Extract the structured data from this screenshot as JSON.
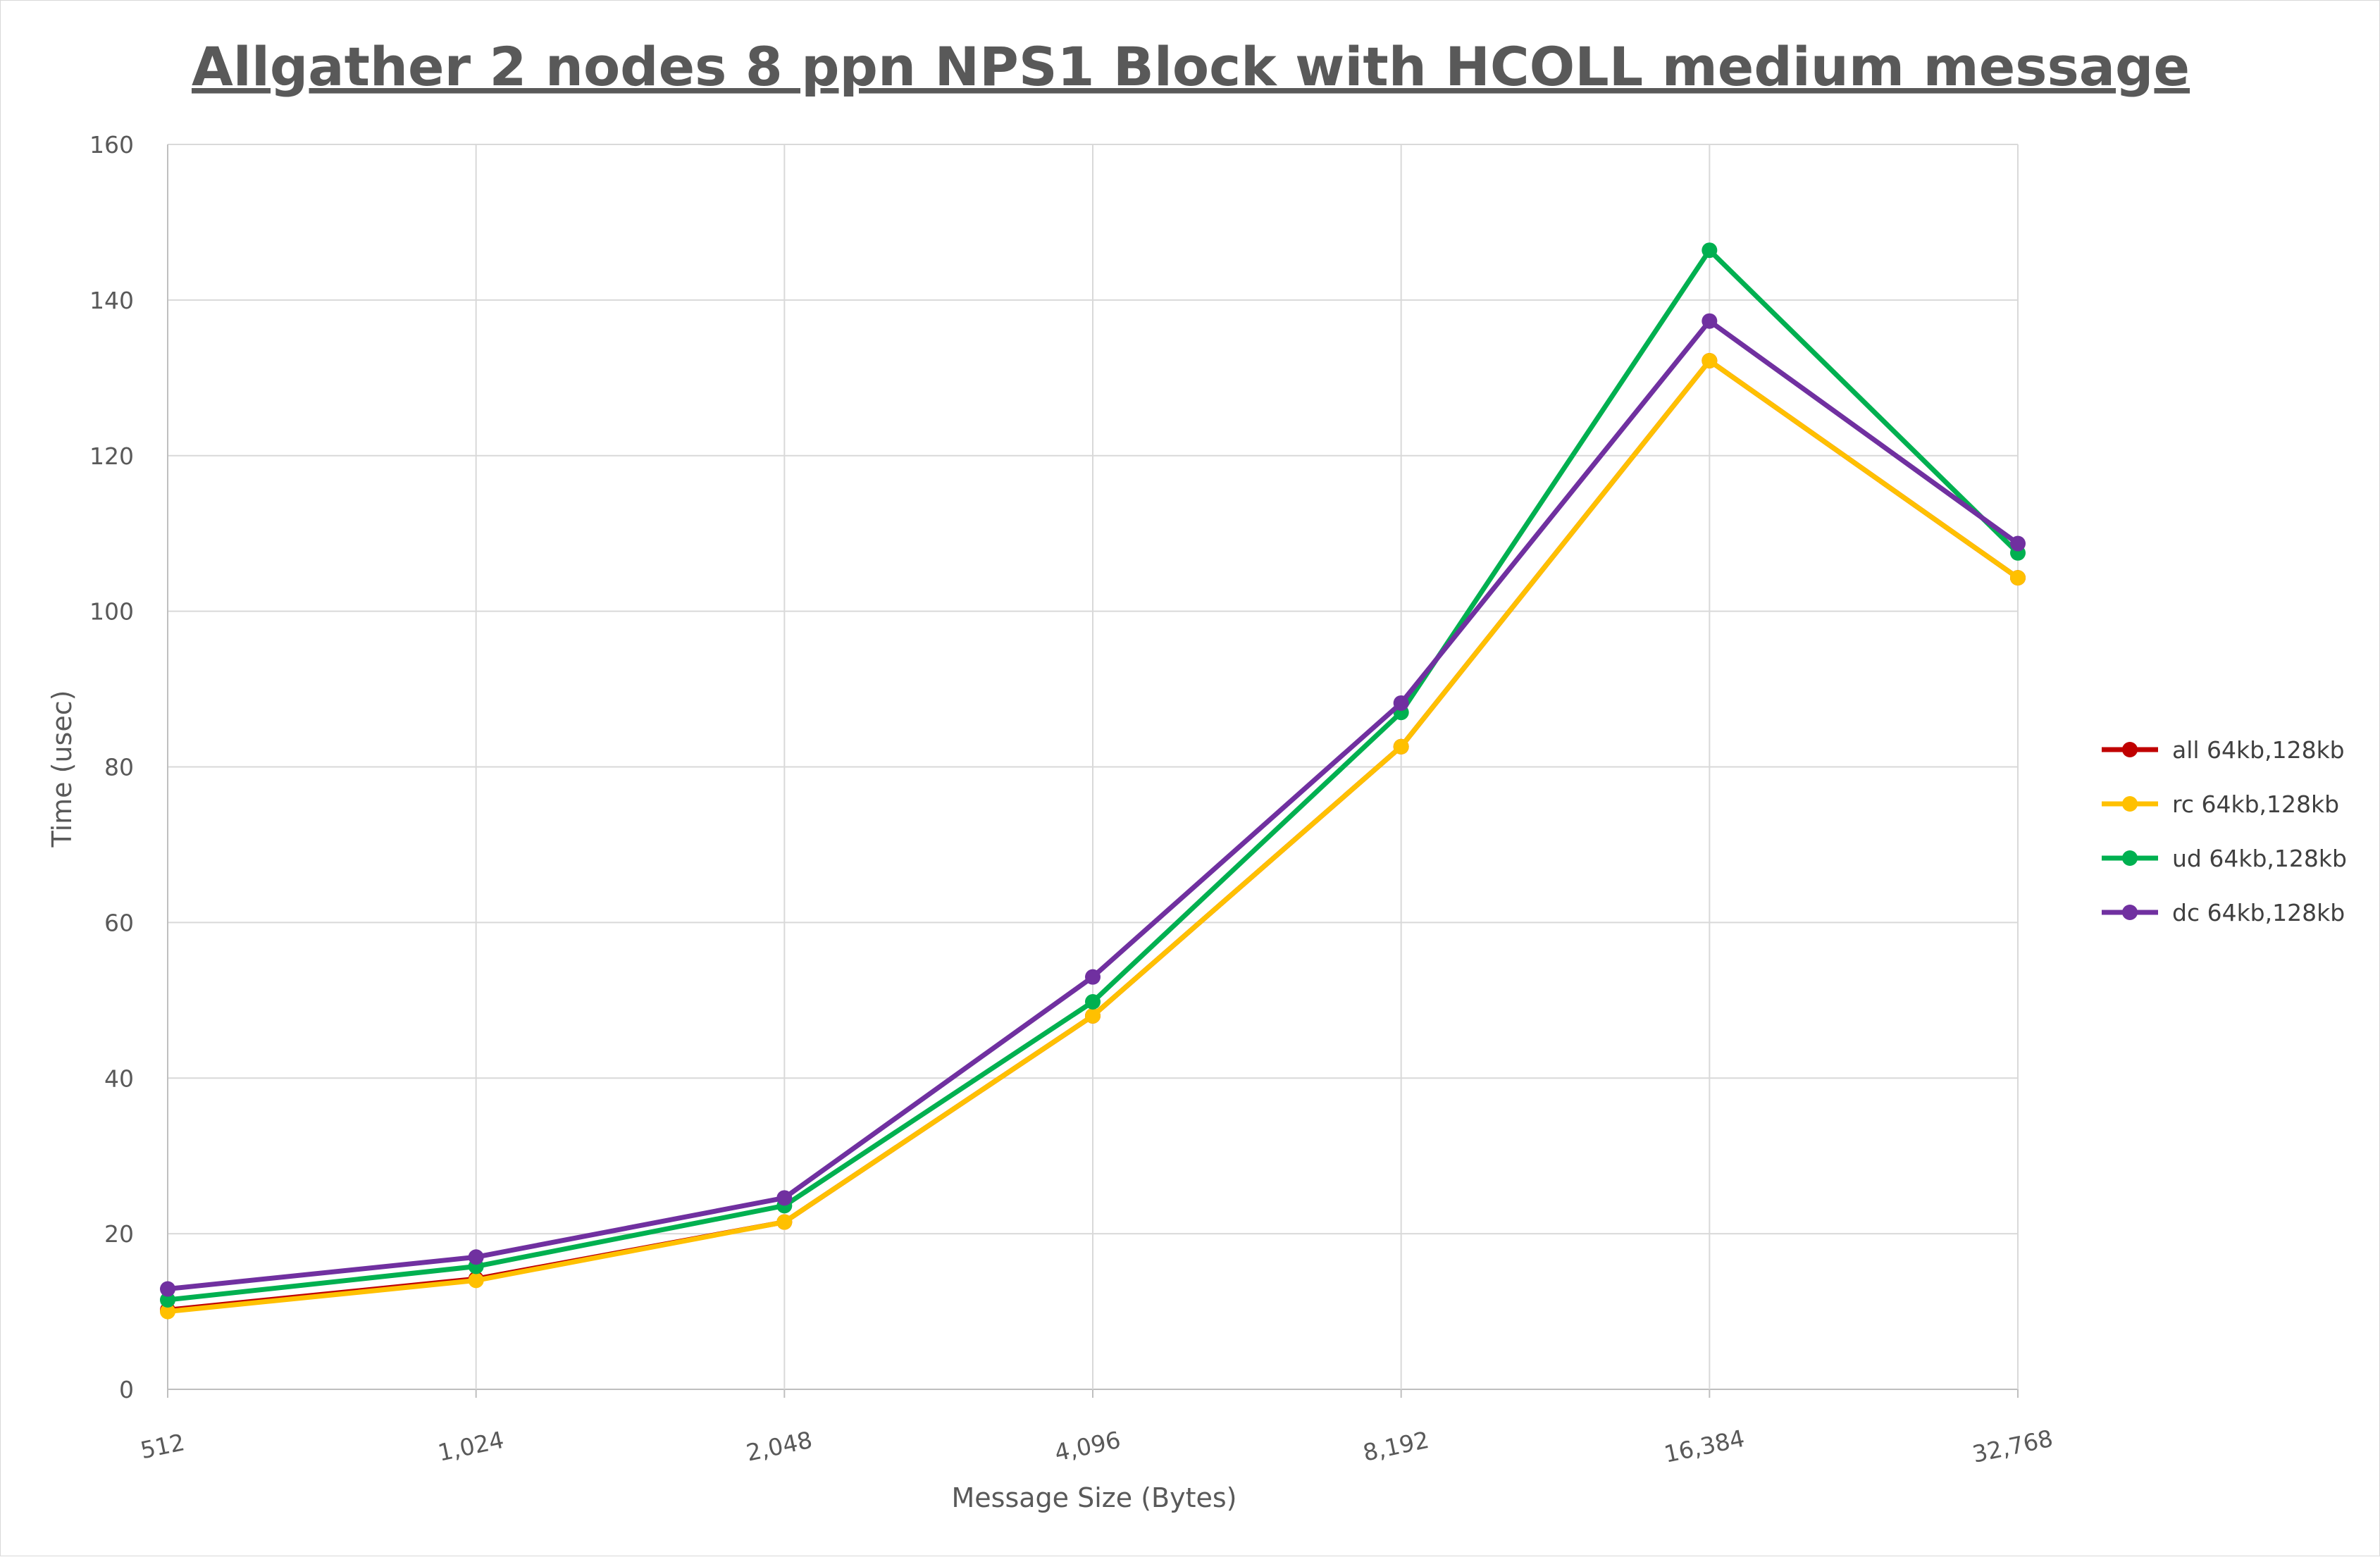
{
  "chart_data": {
    "type": "line",
    "title": "Allgather 2 nodes 8 ppn NPS1 Block with HCOLL medium message",
    "xlabel": "Message Size (Bytes)",
    "ylabel": "Time (usec)",
    "categories": [
      "512",
      "1,024",
      "2,048",
      "4,096",
      "8,192",
      "16,384",
      "32,768"
    ],
    "ylim": [
      0,
      160
    ],
    "yticks": [
      0,
      20,
      40,
      60,
      80,
      100,
      120,
      140,
      160
    ],
    "grid": true,
    "legend_position": "right",
    "series": [
      {
        "name": "all 64kb,128kb",
        "color": "#c00000",
        "values": [
          10.2,
          14.2,
          21.5,
          48.0,
          82.6,
          132.2,
          104.3
        ]
      },
      {
        "name": "rc 64kb,128kb",
        "color": "#ffc000",
        "values": [
          10.0,
          14.0,
          21.5,
          48.0,
          82.6,
          132.2,
          104.3
        ]
      },
      {
        "name": "ud 64kb,128kb",
        "color": "#00b050",
        "values": [
          11.5,
          15.8,
          23.6,
          49.8,
          87.0,
          146.4,
          107.5
        ]
      },
      {
        "name": "dc 64kb,128kb",
        "color": "#7030a0",
        "values": [
          12.9,
          17.0,
          24.6,
          53.0,
          88.2,
          137.3,
          108.7
        ]
      }
    ]
  }
}
